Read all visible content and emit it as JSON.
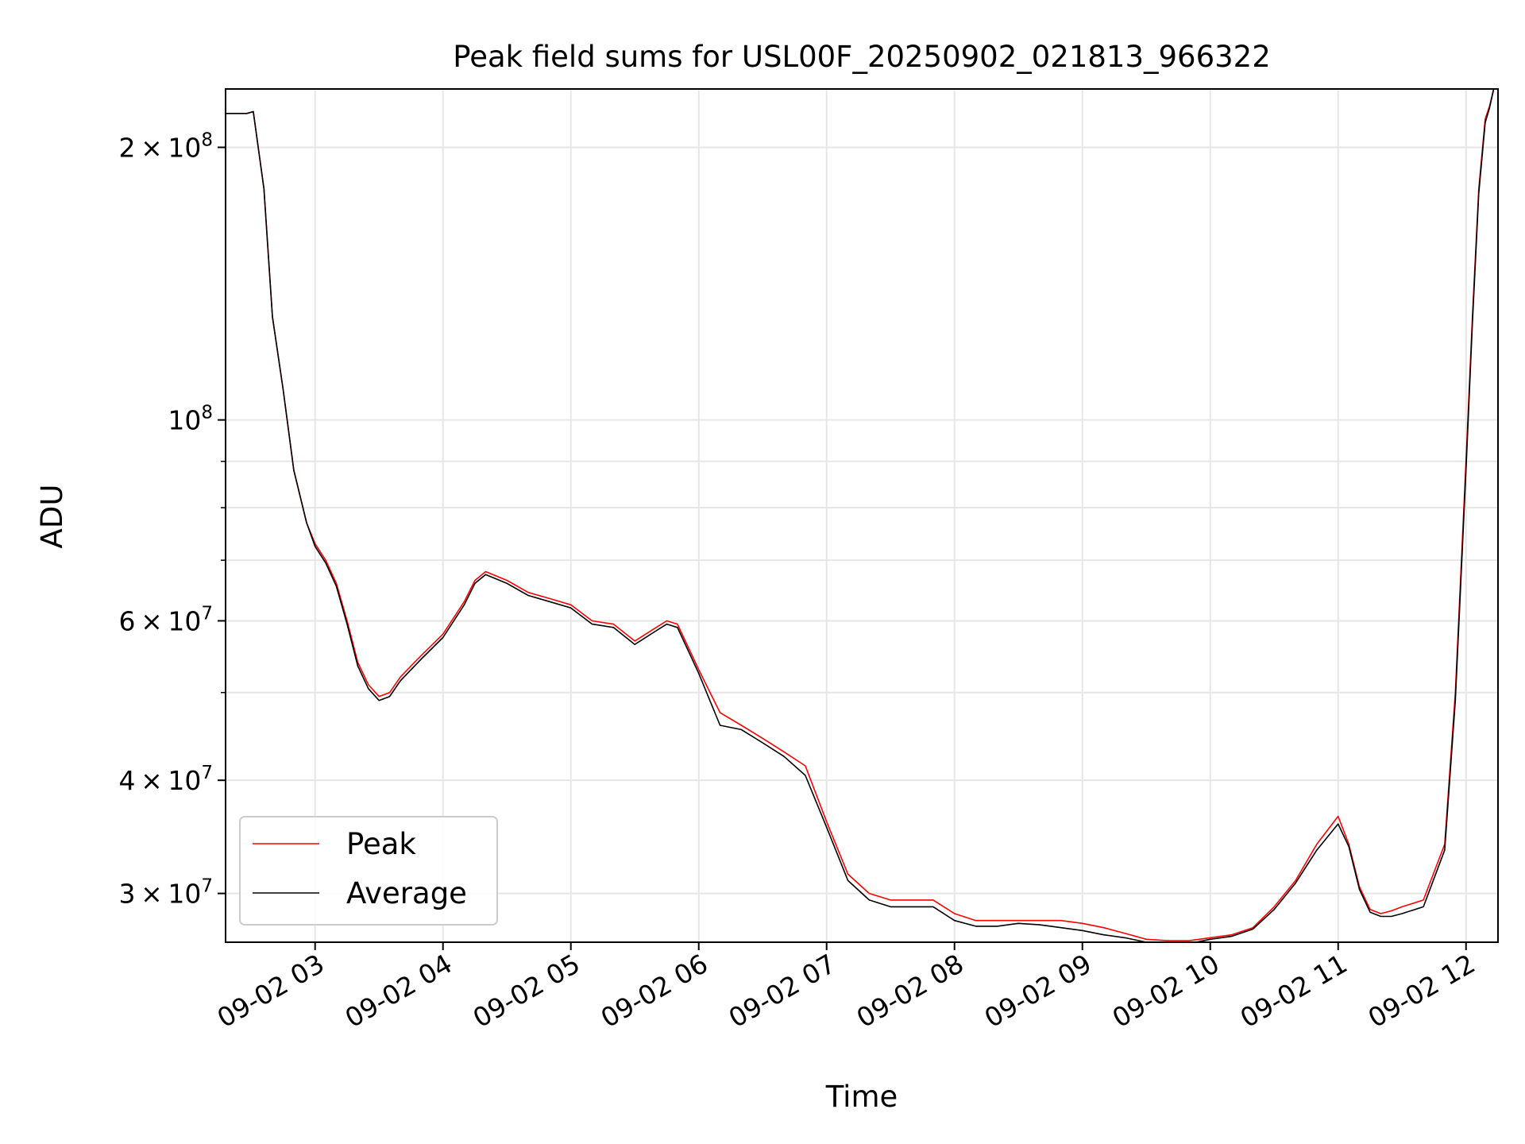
{
  "chart_data": {
    "type": "line",
    "title": "Peak field sums for USL00F_20250902_021813_966322",
    "xlabel": "Time",
    "ylabel": "ADU",
    "x_scale": "time",
    "y_scale": "log",
    "xlim": [
      "2025-09-02 02:18",
      "2025-09-02 12:15"
    ],
    "ylim": [
      26500000,
      232000000
    ],
    "grid": true,
    "legend_position": "lower-left",
    "x_ticks": [
      {
        "value": "2025-09-02 03:00",
        "label": "09-02 03"
      },
      {
        "value": "2025-09-02 04:00",
        "label": "09-02 04"
      },
      {
        "value": "2025-09-02 05:00",
        "label": "09-02 05"
      },
      {
        "value": "2025-09-02 06:00",
        "label": "09-02 06"
      },
      {
        "value": "2025-09-02 07:00",
        "label": "09-02 07"
      },
      {
        "value": "2025-09-02 08:00",
        "label": "09-02 08"
      },
      {
        "value": "2025-09-02 09:00",
        "label": "09-02 09"
      },
      {
        "value": "2025-09-02 10:00",
        "label": "09-02 10"
      },
      {
        "value": "2025-09-02 11:00",
        "label": "09-02 11"
      },
      {
        "value": "2025-09-02 12:00",
        "label": "09-02 12"
      }
    ],
    "y_ticks": [
      {
        "value": 30000000,
        "mantissa": "3",
        "base": "10",
        "exp": "7"
      },
      {
        "value": 40000000,
        "mantissa": "4",
        "base": "10",
        "exp": "7"
      },
      {
        "value": 60000000,
        "mantissa": "6",
        "base": "10",
        "exp": "7"
      },
      {
        "value": 100000000,
        "mantissa": "",
        "base": "10",
        "exp": "8"
      },
      {
        "value": 200000000,
        "mantissa": "2",
        "base": "10",
        "exp": "8"
      }
    ],
    "y_minor_ticks": [
      50000000,
      70000000,
      80000000,
      90000000
    ],
    "series": [
      {
        "name": "Peak",
        "color": "#ff0000",
        "x": [
          "2025-09-02 02:18",
          "2025-09-02 02:28",
          "2025-09-02 02:31",
          "2025-09-02 02:36",
          "2025-09-02 02:40",
          "2025-09-02 02:45",
          "2025-09-02 02:50",
          "2025-09-02 02:56",
          "2025-09-02 03:00",
          "2025-09-02 03:05",
          "2025-09-02 03:10",
          "2025-09-02 03:15",
          "2025-09-02 03:20",
          "2025-09-02 03:25",
          "2025-09-02 03:30",
          "2025-09-02 03:35",
          "2025-09-02 03:40",
          "2025-09-02 03:45",
          "2025-09-02 03:50",
          "2025-09-02 04:00",
          "2025-09-02 04:10",
          "2025-09-02 04:15",
          "2025-09-02 04:20",
          "2025-09-02 04:30",
          "2025-09-02 04:40",
          "2025-09-02 04:50",
          "2025-09-02 05:00",
          "2025-09-02 05:10",
          "2025-09-02 05:20",
          "2025-09-02 05:30",
          "2025-09-02 05:40",
          "2025-09-02 05:45",
          "2025-09-02 05:50",
          "2025-09-02 06:00",
          "2025-09-02 06:10",
          "2025-09-02 06:20",
          "2025-09-02 06:30",
          "2025-09-02 06:40",
          "2025-09-02 06:50",
          "2025-09-02 07:00",
          "2025-09-02 07:10",
          "2025-09-02 07:20",
          "2025-09-02 07:30",
          "2025-09-02 07:40",
          "2025-09-02 07:50",
          "2025-09-02 08:00",
          "2025-09-02 08:10",
          "2025-09-02 08:20",
          "2025-09-02 08:30",
          "2025-09-02 08:40",
          "2025-09-02 08:50",
          "2025-09-02 09:00",
          "2025-09-02 09:10",
          "2025-09-02 09:20",
          "2025-09-02 09:30",
          "2025-09-02 09:40",
          "2025-09-02 09:50",
          "2025-09-02 10:00",
          "2025-09-02 10:10",
          "2025-09-02 10:20",
          "2025-09-02 10:30",
          "2025-09-02 10:40",
          "2025-09-02 10:50",
          "2025-09-02 11:00",
          "2025-09-02 11:05",
          "2025-09-02 11:10",
          "2025-09-02 11:15",
          "2025-09-02 11:20",
          "2025-09-02 11:25",
          "2025-09-02 11:30",
          "2025-09-02 11:40",
          "2025-09-02 11:50",
          "2025-09-02 11:55",
          "2025-09-02 12:00",
          "2025-09-02 12:03",
          "2025-09-02 12:06",
          "2025-09-02 12:09",
          "2025-09-02 12:11",
          "2025-09-02 12:13",
          "2025-09-02 12:15"
        ],
        "values": [
          218000000,
          218000000,
          219000000,
          180000000,
          130000000,
          108000000,
          88000000,
          77000000,
          73000000,
          70000000,
          66000000,
          60000000,
          54000000,
          51000000,
          49500000,
          50000000,
          52000000,
          53500000,
          55000000,
          58000000,
          63000000,
          66500000,
          68000000,
          66500000,
          64500000,
          63500000,
          62500000,
          60000000,
          59500000,
          57000000,
          59000000,
          60000000,
          59500000,
          53000000,
          47500000,
          46000000,
          44500000,
          43000000,
          41500000,
          36000000,
          31500000,
          30000000,
          29500000,
          29500000,
          29500000,
          28500000,
          28000000,
          28000000,
          28000000,
          28000000,
          28000000,
          27800000,
          27500000,
          27100000,
          26700000,
          26600000,
          26600000,
          26800000,
          27000000,
          27500000,
          29000000,
          31000000,
          34000000,
          36500000,
          34000000,
          30500000,
          28800000,
          28500000,
          28700000,
          29000000,
          29500000,
          34000000,
          50000000,
          90000000,
          130000000,
          180000000,
          215000000,
          222000000,
          232000000,
          232000000
        ]
      },
      {
        "name": "Average",
        "color": "#000000",
        "x": [
          "2025-09-02 02:18",
          "2025-09-02 02:28",
          "2025-09-02 02:31",
          "2025-09-02 02:36",
          "2025-09-02 02:40",
          "2025-09-02 02:45",
          "2025-09-02 02:50",
          "2025-09-02 02:56",
          "2025-09-02 03:00",
          "2025-09-02 03:05",
          "2025-09-02 03:10",
          "2025-09-02 03:15",
          "2025-09-02 03:20",
          "2025-09-02 03:25",
          "2025-09-02 03:30",
          "2025-09-02 03:35",
          "2025-09-02 03:40",
          "2025-09-02 03:45",
          "2025-09-02 03:50",
          "2025-09-02 04:00",
          "2025-09-02 04:10",
          "2025-09-02 04:15",
          "2025-09-02 04:20",
          "2025-09-02 04:30",
          "2025-09-02 04:40",
          "2025-09-02 04:50",
          "2025-09-02 05:00",
          "2025-09-02 05:10",
          "2025-09-02 05:20",
          "2025-09-02 05:30",
          "2025-09-02 05:40",
          "2025-09-02 05:45",
          "2025-09-02 05:50",
          "2025-09-02 06:00",
          "2025-09-02 06:10",
          "2025-09-02 06:20",
          "2025-09-02 06:30",
          "2025-09-02 06:40",
          "2025-09-02 06:50",
          "2025-09-02 07:00",
          "2025-09-02 07:10",
          "2025-09-02 07:20",
          "2025-09-02 07:30",
          "2025-09-02 07:40",
          "2025-09-02 07:50",
          "2025-09-02 08:00",
          "2025-09-02 08:10",
          "2025-09-02 08:20",
          "2025-09-02 08:30",
          "2025-09-02 08:40",
          "2025-09-02 08:50",
          "2025-09-02 09:00",
          "2025-09-02 09:10",
          "2025-09-02 09:20",
          "2025-09-02 09:30",
          "2025-09-02 09:40",
          "2025-09-02 09:50",
          "2025-09-02 10:00",
          "2025-09-02 10:10",
          "2025-09-02 10:20",
          "2025-09-02 10:30",
          "2025-09-02 10:40",
          "2025-09-02 10:50",
          "2025-09-02 11:00",
          "2025-09-02 11:05",
          "2025-09-02 11:10",
          "2025-09-02 11:15",
          "2025-09-02 11:20",
          "2025-09-02 11:25",
          "2025-09-02 11:30",
          "2025-09-02 11:40",
          "2025-09-02 11:50",
          "2025-09-02 11:55",
          "2025-09-02 12:00",
          "2025-09-02 12:03",
          "2025-09-02 12:06",
          "2025-09-02 12:09",
          "2025-09-02 12:11",
          "2025-09-02 12:13",
          "2025-09-02 12:15"
        ],
        "values": [
          218000000,
          218000000,
          219000000,
          180000000,
          130000000,
          108000000,
          88000000,
          77000000,
          72500000,
          69500000,
          65500000,
          59500000,
          53500000,
          50500000,
          49000000,
          49500000,
          51500000,
          53000000,
          54500000,
          57500000,
          62500000,
          66000000,
          67500000,
          66000000,
          64000000,
          63000000,
          62000000,
          59500000,
          59000000,
          56500000,
          58500000,
          59500000,
          59000000,
          52500000,
          46000000,
          45500000,
          44000000,
          42500000,
          40500000,
          35500000,
          31000000,
          29500000,
          29000000,
          29000000,
          29000000,
          28000000,
          27600000,
          27600000,
          27800000,
          27700000,
          27500000,
          27300000,
          27000000,
          26800000,
          26500000,
          26300000,
          26400000,
          26700000,
          26900000,
          27400000,
          28800000,
          30800000,
          33500000,
          35800000,
          33800000,
          30300000,
          28600000,
          28300000,
          28300000,
          28500000,
          29000000,
          33500000,
          49000000,
          88000000,
          128000000,
          178000000,
          213000000,
          221000000,
          232000000,
          232000000
        ]
      }
    ]
  }
}
